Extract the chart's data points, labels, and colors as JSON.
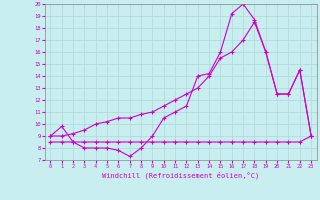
{
  "xlabel": "Windchill (Refroidissement éolien,°C)",
  "xlim": [
    -0.5,
    23.5
  ],
  "ylim": [
    7,
    20
  ],
  "xticks": [
    0,
    1,
    2,
    3,
    4,
    5,
    6,
    7,
    8,
    9,
    10,
    11,
    12,
    13,
    14,
    15,
    16,
    17,
    18,
    19,
    20,
    21,
    22,
    23
  ],
  "yticks": [
    7,
    8,
    9,
    10,
    11,
    12,
    13,
    14,
    15,
    16,
    17,
    18,
    19,
    20
  ],
  "bg_color": "#c8eef0",
  "line_color": "#cc00cc",
  "grid_color": "#b0d8d8",
  "line1_x": [
    0,
    1,
    2,
    3,
    4,
    5,
    6,
    7,
    8,
    9,
    10,
    11,
    12,
    13,
    14,
    15,
    16,
    17,
    18,
    19,
    20,
    21,
    22,
    23
  ],
  "line1_y": [
    9.0,
    9.8,
    8.5,
    8.0,
    8.0,
    8.0,
    7.8,
    7.3,
    8.0,
    9.0,
    10.5,
    11.0,
    11.5,
    14.0,
    14.2,
    16.0,
    19.2,
    20.0,
    18.7,
    16.0,
    12.5,
    12.5,
    14.5,
    9.0
  ],
  "line2_x": [
    0,
    1,
    2,
    3,
    4,
    5,
    6,
    7,
    8,
    9,
    10,
    11,
    12,
    13,
    14,
    15,
    16,
    17,
    18,
    19,
    20,
    21,
    22,
    23
  ],
  "line2_y": [
    9.0,
    9.0,
    9.2,
    9.5,
    10.0,
    10.2,
    10.5,
    10.5,
    10.8,
    11.0,
    11.5,
    12.0,
    12.5,
    13.0,
    14.0,
    15.5,
    16.0,
    17.0,
    18.5,
    16.0,
    12.5,
    12.5,
    14.5,
    9.0
  ],
  "line3_x": [
    0,
    1,
    2,
    3,
    4,
    5,
    6,
    7,
    8,
    9,
    10,
    11,
    12,
    13,
    14,
    15,
    16,
    17,
    18,
    19,
    20,
    21,
    22,
    23
  ],
  "line3_y": [
    8.5,
    8.5,
    8.5,
    8.5,
    8.5,
    8.5,
    8.5,
    8.5,
    8.5,
    8.5,
    8.5,
    8.5,
    8.5,
    8.5,
    8.5,
    8.5,
    8.5,
    8.5,
    8.5,
    8.5,
    8.5,
    8.5,
    8.5,
    9.0
  ]
}
